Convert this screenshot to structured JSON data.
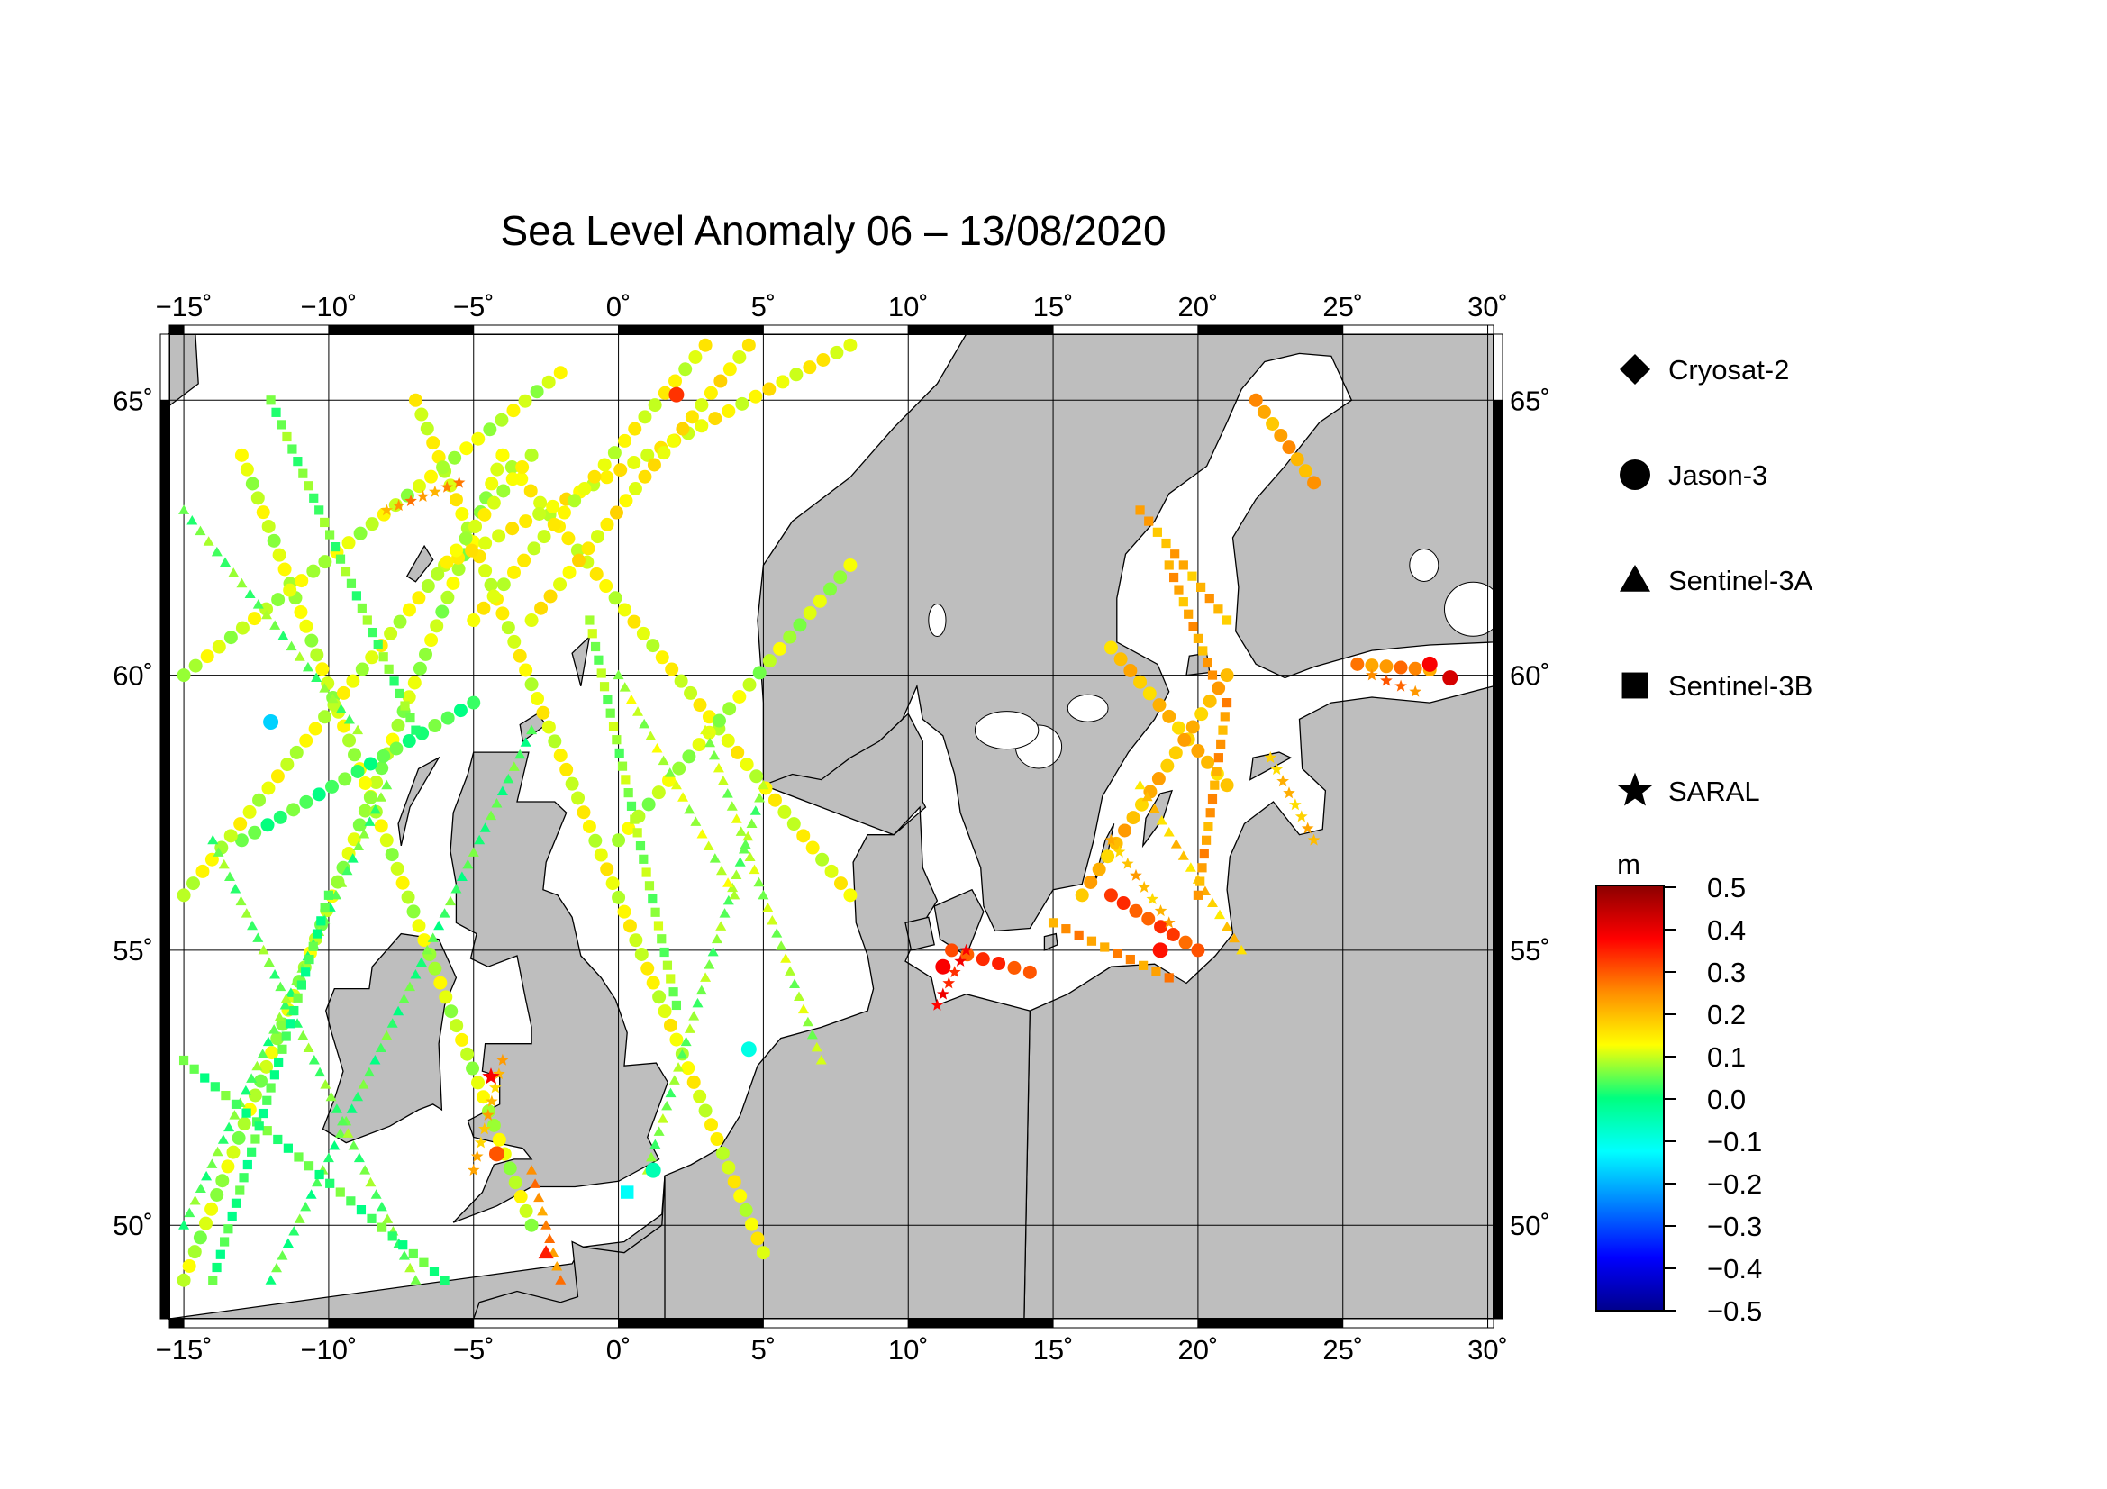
{
  "title": "Sea Level Anomaly 06 – 13/08/2020",
  "map": {
    "lon_range": [
      -15.5,
      30.2
    ],
    "lat_range": [
      48.3,
      66.2
    ],
    "lon_ticks": [
      -15,
      -10,
      -5,
      0,
      5,
      10,
      15,
      20,
      25,
      30
    ],
    "lat_ticks": [
      50,
      55,
      60,
      65
    ],
    "lon_tick_labels": [
      "−15˚",
      "−10˚",
      "−5˚",
      "0˚",
      "5˚",
      "10˚",
      "15˚",
      "20˚",
      "25˚",
      "30˚"
    ],
    "lat_tick_labels": [
      "50˚",
      "55˚",
      "60˚",
      "65˚"
    ],
    "grid": true,
    "land_color": "#bebebe",
    "sea_color": "#ffffff"
  },
  "legend": {
    "satellites": [
      {
        "name": "Cryosat-2",
        "marker": "diamond"
      },
      {
        "name": "Jason-3",
        "marker": "circle"
      },
      {
        "name": "Sentinel-3A",
        "marker": "triangle"
      },
      {
        "name": "Sentinel-3B",
        "marker": "square"
      },
      {
        "name": "SARAL",
        "marker": "star"
      }
    ]
  },
  "colorbar": {
    "unit": "m",
    "min": -0.5,
    "max": 0.5,
    "tick_labels": [
      "0.5",
      "0.4",
      "0.3",
      "0.2",
      "0.1",
      "0.0",
      "−0.1",
      "−0.2",
      "−0.3",
      "−0.4",
      "−0.5"
    ],
    "colors": [
      "#8b0000",
      "#ff0000",
      "#ff8c00",
      "#ffff00",
      "#00ff7f",
      "#00ffff",
      "#0080ff",
      "#0000ff",
      "#00008b"
    ]
  },
  "chart_data": {
    "type": "scatter",
    "x_label": "",
    "y_label": "",
    "value_unit": "m",
    "tracks": [
      {
        "satellite": "Jason-3",
        "from": [
          -15,
          49
        ],
        "to": [
          -4,
          64
        ],
        "value": 0.09
      },
      {
        "satellite": "Jason-3",
        "from": [
          -13,
          64
        ],
        "to": [
          -3,
          50
        ],
        "value": 0.1
      },
      {
        "satellite": "Jason-3",
        "from": [
          -7,
          65
        ],
        "to": [
          5,
          49.5
        ],
        "value": 0.12
      },
      {
        "satellite": "Jason-3",
        "from": [
          -4,
          64
        ],
        "to": [
          8,
          56
        ],
        "value": 0.12
      },
      {
        "satellite": "Jason-3",
        "from": [
          -15,
          60
        ],
        "to": [
          -2,
          65.5
        ],
        "value": 0.1
      },
      {
        "satellite": "Jason-3",
        "from": [
          -6,
          62
        ],
        "to": [
          8,
          66
        ],
        "value": 0.13
      },
      {
        "satellite": "Jason-3",
        "from": [
          0,
          57
        ],
        "to": [
          8,
          62
        ],
        "value": 0.09
      },
      {
        "satellite": "Jason-3",
        "from": [
          -13,
          57
        ],
        "to": [
          -5,
          59.5
        ],
        "value": 0.03
      },
      {
        "satellite": "Jason-3",
        "from": [
          3,
          66
        ],
        "to": [
          -5,
          61
        ],
        "value": 0.12
      },
      {
        "satellite": "Jason-3",
        "from": [
          4.5,
          66
        ],
        "to": [
          -3,
          61
        ],
        "value": 0.14
      },
      {
        "satellite": "Jason-3",
        "from": [
          -15,
          56
        ],
        "to": [
          -3,
          64
        ],
        "value": 0.11
      },
      {
        "satellite": "Jason-3",
        "from": [
          17,
          60.5
        ],
        "to": [
          21,
          58
        ],
        "value": 0.19
      },
      {
        "satellite": "Jason-3",
        "from": [
          16,
          56
        ],
        "to": [
          21,
          60
        ],
        "value": 0.2
      },
      {
        "satellite": "Jason-3",
        "from": [
          17,
          56
        ],
        "to": [
          20,
          55
        ],
        "value": 0.31
      },
      {
        "satellite": "Jason-3",
        "from": [
          22,
          65
        ],
        "to": [
          24,
          63.5
        ],
        "value": 0.22
      },
      {
        "satellite": "Jason-3",
        "from": [
          25.5,
          60.2
        ],
        "to": [
          28,
          60.1
        ],
        "value": 0.25
      },
      {
        "satellite": "Jason-3",
        "from": [
          11.5,
          55
        ],
        "to": [
          14.2,
          54.6
        ],
        "value": 0.32
      },
      {
        "satellite": "Sentinel-3A",
        "from": [
          -15,
          50
        ],
        "to": [
          -8,
          58
        ],
        "value": 0.04
      },
      {
        "satellite": "Sentinel-3A",
        "from": [
          -12,
          49
        ],
        "to": [
          -3,
          59
        ],
        "value": 0.03
      },
      {
        "satellite": "Sentinel-3A",
        "from": [
          -7,
          49
        ],
        "to": [
          -14,
          57
        ],
        "value": 0.05
      },
      {
        "satellite": "Sentinel-3A",
        "from": [
          1,
          51
        ],
        "to": [
          5,
          58
        ],
        "value": 0.06
      },
      {
        "satellite": "Sentinel-3A",
        "from": [
          3,
          59
        ],
        "to": [
          7,
          53
        ],
        "value": 0.08
      },
      {
        "satellite": "Sentinel-3A",
        "from": [
          -15,
          63
        ],
        "to": [
          -9,
          59
        ],
        "value": 0.05
      },
      {
        "satellite": "Sentinel-3A",
        "from": [
          0,
          60
        ],
        "to": [
          4,
          56
        ],
        "value": 0.09
      },
      {
        "satellite": "Sentinel-3A",
        "from": [
          18,
          58
        ],
        "to": [
          21.5,
          55
        ],
        "value": 0.18
      },
      {
        "satellite": "Sentinel-3A",
        "from": [
          -3,
          51
        ],
        "to": [
          -2,
          49
        ],
        "value": 0.25
      },
      {
        "satellite": "Sentinel-3B",
        "from": [
          -15,
          53
        ],
        "to": [
          -6,
          49
        ],
        "value": 0.03
      },
      {
        "satellite": "Sentinel-3B",
        "from": [
          -14,
          49
        ],
        "to": [
          -10,
          56
        ],
        "value": 0.02
      },
      {
        "satellite": "Sentinel-3B",
        "from": [
          -12,
          65
        ],
        "to": [
          -7,
          59
        ],
        "value": 0.05
      },
      {
        "satellite": "Sentinel-3B",
        "from": [
          2,
          54
        ],
        "to": [
          -1,
          61
        ],
        "value": 0.07
      },
      {
        "satellite": "Sentinel-3B",
        "from": [
          15,
          55.5
        ],
        "to": [
          19,
          54.5
        ],
        "value": 0.24
      },
      {
        "satellite": "Sentinel-3B",
        "from": [
          19,
          62
        ],
        "to": [
          20.5,
          60
        ],
        "value": 0.22
      },
      {
        "satellite": "Sentinel-3B",
        "from": [
          18,
          63
        ],
        "to": [
          21,
          61
        ],
        "value": 0.21
      },
      {
        "satellite": "Sentinel-3B",
        "from": [
          21,
          59.5
        ],
        "to": [
          20,
          56
        ],
        "value": 0.23
      },
      {
        "satellite": "SARAL",
        "from": [
          17,
          57
        ],
        "to": [
          19,
          55.5
        ],
        "value": 0.2
      },
      {
        "satellite": "SARAL",
        "from": [
          22.5,
          58.5
        ],
        "to": [
          24,
          57
        ],
        "value": 0.19
      },
      {
        "satellite": "SARAL",
        "from": [
          -8,
          63
        ],
        "to": [
          -5.5,
          63.5
        ],
        "value": 0.24
      },
      {
        "satellite": "SARAL",
        "from": [
          26,
          60
        ],
        "to": [
          27.5,
          59.7
        ],
        "value": 0.27
      },
      {
        "satellite": "SARAL",
        "from": [
          11,
          54
        ],
        "to": [
          12,
          55
        ],
        "value": 0.36
      },
      {
        "satellite": "SARAL",
        "from": [
          -4,
          53
        ],
        "to": [
          -5,
          51
        ],
        "value": 0.2
      }
    ],
    "points": [
      {
        "satellite": "Jason-3",
        "lon": -12,
        "lat": 59.15,
        "value": -0.17
      },
      {
        "satellite": "Jason-3",
        "lon": 4.5,
        "lat": 53.2,
        "value": -0.1
      },
      {
        "satellite": "Jason-3",
        "lon": 28.7,
        "lat": 59.95,
        "value": 0.42
      },
      {
        "satellite": "Jason-3",
        "lon": 28.0,
        "lat": 60.2,
        "value": 0.38
      },
      {
        "satellite": "Jason-3",
        "lon": 2,
        "lat": 65.1,
        "value": 0.33
      },
      {
        "satellite": "Jason-3",
        "lon": 18.7,
        "lat": 55.0,
        "value": 0.36
      },
      {
        "satellite": "Jason-3",
        "lon": -4.2,
        "lat": 51.3,
        "value": 0.3
      },
      {
        "satellite": "Jason-3",
        "lon": 11.2,
        "lat": 54.7,
        "value": 0.38
      },
      {
        "satellite": "Sentinel-3B",
        "lon": 0.3,
        "lat": 50.6,
        "value": -0.12
      },
      {
        "satellite": "Sentinel-3A",
        "lon": -2.5,
        "lat": 49.5,
        "value": 0.35
      },
      {
        "satellite": "Jason-3",
        "lon": 1.2,
        "lat": 51.0,
        "value": -0.05
      },
      {
        "satellite": "SARAL",
        "lon": -4.4,
        "lat": 52.7,
        "value": 0.38
      }
    ]
  }
}
